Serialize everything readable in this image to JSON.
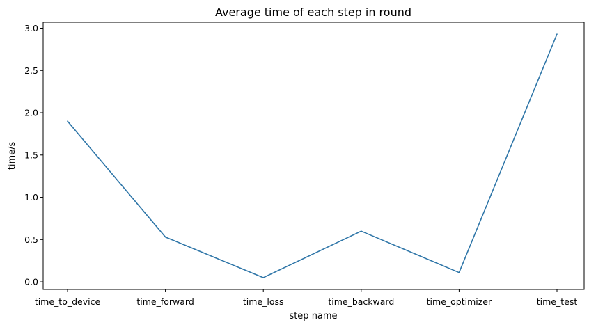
{
  "chart_data": {
    "type": "line",
    "title": "Average time of each step in round",
    "xlabel": "step name",
    "ylabel": "time/s",
    "categories": [
      "time_to_device",
      "time_forward",
      "time_loss",
      "time_backward",
      "time_optimizer",
      "time_test"
    ],
    "series": [
      {
        "values": [
          1.9,
          0.53,
          0.05,
          0.6,
          0.11,
          2.93
        ]
      }
    ],
    "yticks": [
      "0.0",
      "0.5",
      "1.0",
      "1.5",
      "2.0",
      "2.5",
      "3.0"
    ],
    "ylim": [
      -0.09,
      3.07
    ],
    "grid": false,
    "line_color": "#2f76a8"
  }
}
